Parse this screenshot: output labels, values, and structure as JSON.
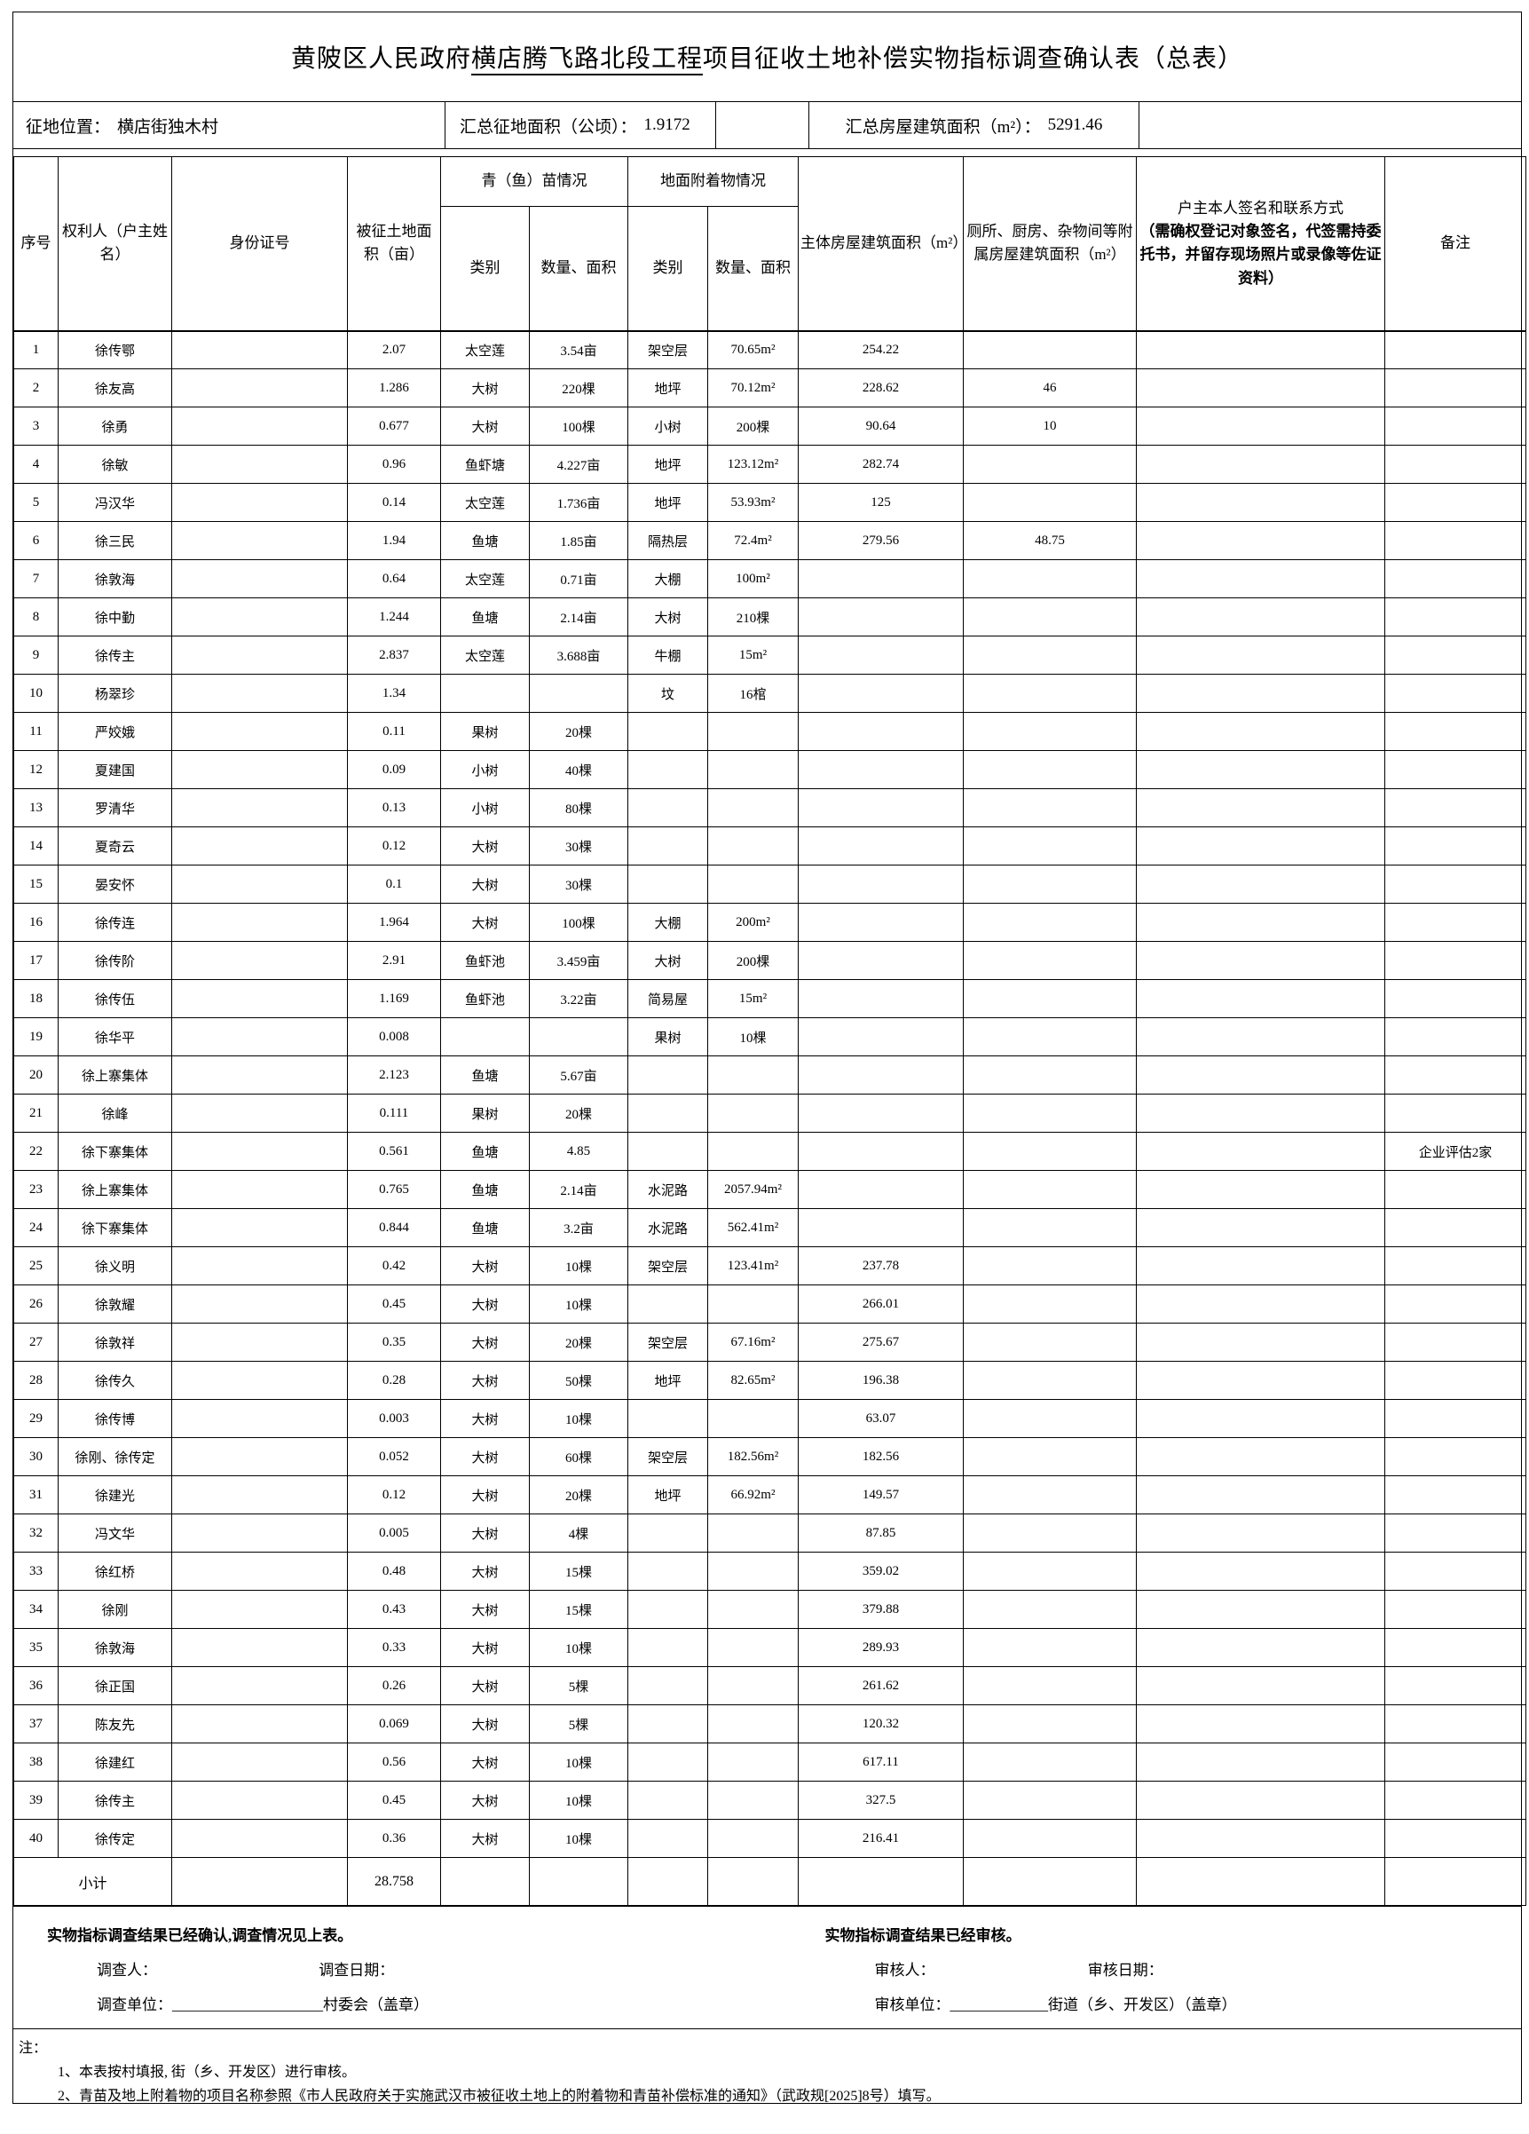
{
  "title": {
    "prefix": "黄陂区人民政府",
    "underlined": "横店腾飞路北段工程",
    "suffix": "项目征收土地补偿实物指标调查确认表（总表）"
  },
  "summary": {
    "location_label": "征地位置：",
    "location_value": "横店街独木村",
    "land_area_label": "汇总征地面积（公顷）：",
    "land_area_value": "1.9172",
    "building_area_label": "汇总房屋建筑面积（m²）：",
    "building_area_value": "5291.46"
  },
  "table": {
    "headers": {
      "seq": "序号",
      "owner": "权利人（户主姓名）",
      "id_no": "身份证号",
      "land_area": "被征土地面积（亩）",
      "crop_group": "青（鱼）苗情况",
      "attach_group": "地面附着物情况",
      "type": "类别",
      "qty": "数量、面积",
      "main_area": "主体房屋建筑面积（m²）",
      "aux_area": "厕所、厨房、杂物间等附属房屋建筑面积（m²）",
      "signature": "户主本人签名和联系方式",
      "signature_note": "（需确权登记对象签名，代签需持委托书，并留存现场照片或录像等佐证资料）",
      "remark": "备注"
    },
    "field_names": [
      "seq",
      "owner",
      "id_no",
      "land_area",
      "crop_type",
      "crop_qty",
      "attach_type",
      "attach_qty",
      "main_area",
      "aux_area",
      "signature",
      "remark"
    ],
    "columns": [
      "序号",
      "权利人（户主姓名）",
      "身份证号",
      "被征土地面积（亩）",
      "青苗类别",
      "青苗数量、面积",
      "附着物类别",
      "附着物数量、面积",
      "主体房屋建筑面积",
      "附属房屋建筑面积",
      "签名",
      "备注"
    ],
    "rows": [
      [
        "1",
        "徐传鄂",
        "",
        "2.07",
        "太空莲",
        "3.54亩",
        "架空层",
        "70.65m²",
        "254.22",
        "",
        "",
        ""
      ],
      [
        "2",
        "徐友高",
        "",
        "1.286",
        "大树",
        "220棵",
        "地坪",
        "70.12m²",
        "228.62",
        "46",
        "",
        ""
      ],
      [
        "3",
        "徐勇",
        "",
        "0.677",
        "大树",
        "100棵",
        "小树",
        "200棵",
        "90.64",
        "10",
        "",
        ""
      ],
      [
        "4",
        "徐敏",
        "",
        "0.96",
        "鱼虾塘",
        "4.227亩",
        "地坪",
        "123.12m²",
        "282.74",
        "",
        "",
        ""
      ],
      [
        "5",
        "冯汉华",
        "",
        "0.14",
        "太空莲",
        "1.736亩",
        "地坪",
        "53.93m²",
        "125",
        "",
        "",
        ""
      ],
      [
        "6",
        "徐三民",
        "",
        "1.94",
        "鱼塘",
        "1.85亩",
        "隔热层",
        "72.4m²",
        "279.56",
        "48.75",
        "",
        ""
      ],
      [
        "7",
        "徐敦海",
        "",
        "0.64",
        "太空莲",
        "0.71亩",
        "大棚",
        "100m²",
        "",
        "",
        "",
        ""
      ],
      [
        "8",
        "徐中勤",
        "",
        "1.244",
        "鱼塘",
        "2.14亩",
        "大树",
        "210棵",
        "",
        "",
        "",
        ""
      ],
      [
        "9",
        "徐传主",
        "",
        "2.837",
        "太空莲",
        "3.688亩",
        "牛棚",
        "15m²",
        "",
        "",
        "",
        ""
      ],
      [
        "10",
        "杨翠珍",
        "",
        "1.34",
        "",
        "",
        "坟",
        "16棺",
        "",
        "",
        "",
        ""
      ],
      [
        "11",
        "严姣娥",
        "",
        "0.11",
        "果树",
        "20棵",
        "",
        "",
        "",
        "",
        "",
        ""
      ],
      [
        "12",
        "夏建国",
        "",
        "0.09",
        "小树",
        "40棵",
        "",
        "",
        "",
        "",
        "",
        ""
      ],
      [
        "13",
        "罗清华",
        "",
        "0.13",
        "小树",
        "80棵",
        "",
        "",
        "",
        "",
        "",
        ""
      ],
      [
        "14",
        "夏奇云",
        "",
        "0.12",
        "大树",
        "30棵",
        "",
        "",
        "",
        "",
        "",
        ""
      ],
      [
        "15",
        "晏安怀",
        "",
        "0.1",
        "大树",
        "30棵",
        "",
        "",
        "",
        "",
        "",
        ""
      ],
      [
        "16",
        "徐传连",
        "",
        "1.964",
        "大树",
        "100棵",
        "大棚",
        "200m²",
        "",
        "",
        "",
        ""
      ],
      [
        "17",
        "徐传阶",
        "",
        "2.91",
        "鱼虾池",
        "3.459亩",
        "大树",
        "200棵",
        "",
        "",
        "",
        ""
      ],
      [
        "18",
        "徐传伍",
        "",
        "1.169",
        "鱼虾池",
        "3.22亩",
        "简易屋",
        "15m²",
        "",
        "",
        "",
        ""
      ],
      [
        "19",
        "徐华平",
        "",
        "0.008",
        "",
        "",
        "果树",
        "10棵",
        "",
        "",
        "",
        ""
      ],
      [
        "20",
        "徐上寨集体",
        "",
        "2.123",
        "鱼塘",
        "5.67亩",
        "",
        "",
        "",
        "",
        "",
        ""
      ],
      [
        "21",
        "徐峰",
        "",
        "0.111",
        "果树",
        "20棵",
        "",
        "",
        "",
        "",
        "",
        ""
      ],
      [
        "22",
        "徐下寨集体",
        "",
        "0.561",
        "鱼塘",
        "4.85",
        "",
        "",
        "",
        "",
        "",
        "企业评估2家"
      ],
      [
        "23",
        "徐上寨集体",
        "",
        "0.765",
        "鱼塘",
        "2.14亩",
        "水泥路",
        "2057.94m²",
        "",
        "",
        "",
        ""
      ],
      [
        "24",
        "徐下寨集体",
        "",
        "0.844",
        "鱼塘",
        "3.2亩",
        "水泥路",
        "562.41m²",
        "",
        "",
        "",
        ""
      ],
      [
        "25",
        "徐义明",
        "",
        "0.42",
        "大树",
        "10棵",
        "架空层",
        "123.41m²",
        "237.78",
        "",
        "",
        ""
      ],
      [
        "26",
        "徐敦耀",
        "",
        "0.45",
        "大树",
        "10棵",
        "",
        "",
        "266.01",
        "",
        "",
        ""
      ],
      [
        "27",
        "徐敦祥",
        "",
        "0.35",
        "大树",
        "20棵",
        "架空层",
        "67.16m²",
        "275.67",
        "",
        "",
        ""
      ],
      [
        "28",
        "徐传久",
        "",
        "0.28",
        "大树",
        "50棵",
        "地坪",
        "82.65m²",
        "196.38",
        "",
        "",
        ""
      ],
      [
        "29",
        "徐传博",
        "",
        "0.003",
        "大树",
        "10棵",
        "",
        "",
        "63.07",
        "",
        "",
        ""
      ],
      [
        "30",
        "徐刚、徐传定",
        "",
        "0.052",
        "大树",
        "60棵",
        "架空层",
        "182.56m²",
        "182.56",
        "",
        "",
        ""
      ],
      [
        "31",
        "徐建光",
        "",
        "0.12",
        "大树",
        "20棵",
        "地坪",
        "66.92m²",
        "149.57",
        "",
        "",
        ""
      ],
      [
        "32",
        "冯文华",
        "",
        "0.005",
        "大树",
        "4棵",
        "",
        "",
        "87.85",
        "",
        "",
        ""
      ],
      [
        "33",
        "徐红桥",
        "",
        "0.48",
        "大树",
        "15棵",
        "",
        "",
        "359.02",
        "",
        "",
        ""
      ],
      [
        "34",
        "徐刚",
        "",
        "0.43",
        "大树",
        "15棵",
        "",
        "",
        "379.88",
        "",
        "",
        ""
      ],
      [
        "35",
        "徐敦海",
        "",
        "0.33",
        "大树",
        "10棵",
        "",
        "",
        "289.93",
        "",
        "",
        ""
      ],
      [
        "36",
        "徐正国",
        "",
        "0.26",
        "大树",
        "5棵",
        "",
        "",
        "261.62",
        "",
        "",
        ""
      ],
      [
        "37",
        "陈友先",
        "",
        "0.069",
        "大树",
        "5棵",
        "",
        "",
        "120.32",
        "",
        "",
        ""
      ],
      [
        "38",
        "徐建红",
        "",
        "0.56",
        "大树",
        "10棵",
        "",
        "",
        "617.11",
        "",
        "",
        ""
      ],
      [
        "39",
        "徐传主",
        "",
        "0.45",
        "大树",
        "10棵",
        "",
        "",
        "327.5",
        "",
        "",
        ""
      ],
      [
        "40",
        "徐传定",
        "",
        "0.36",
        "大树",
        "10棵",
        "",
        "",
        "216.41",
        "",
        "",
        ""
      ]
    ],
    "subtotal": {
      "label": "小计",
      "land_area": "28.758"
    }
  },
  "footer": {
    "confirm_text": "实物指标调查结果已经确认,调查情况见上表。",
    "surveyor_label": "调查人：",
    "survey_date_label": "调查日期：",
    "survey_unit_label": "调查单位：",
    "survey_unit_blank": "____________________",
    "survey_unit_suffix": "村委会（盖章）",
    "review_text": "实物指标调查结果已经审核。",
    "reviewer_label": "审核人：",
    "review_date_label": "审核日期：",
    "review_unit_label": "审核单位：",
    "review_unit_blank": "_____________",
    "review_unit_suffix": "街道（乡、开发区）（盖章）"
  },
  "notes": {
    "label": "注：",
    "items": [
      "1、本表按村填报, 街（乡、开发区）进行审核。",
      "2、青苗及地上附着物的项目名称参照《市人民政府关于实施武汉市被征收土地上的附着物和青苗补偿标准的通知》（武政规[2025]8号）填写。"
    ]
  }
}
